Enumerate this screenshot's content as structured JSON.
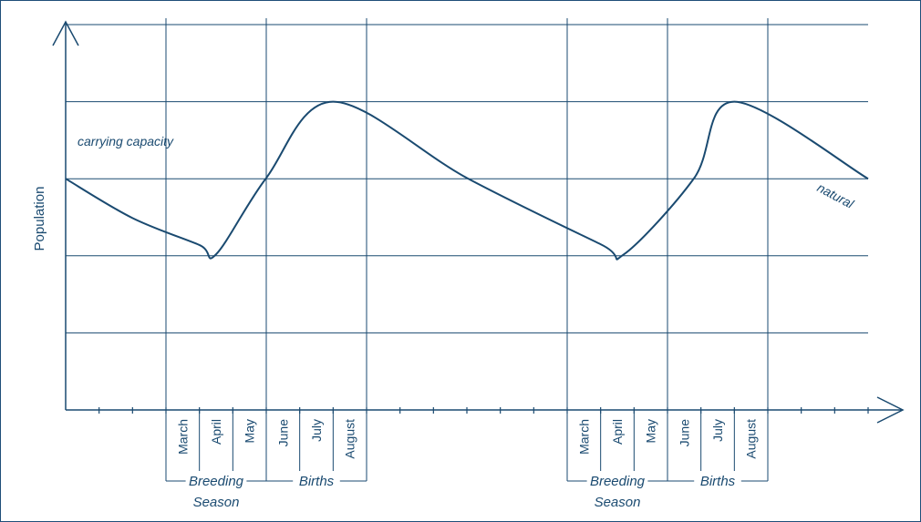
{
  "colors": {
    "line": "#1a4a70"
  },
  "chart_data": {
    "type": "line",
    "ylabel": "Population",
    "annotations": {
      "carrying_capacity": "carrying capacity",
      "natural": "natural"
    },
    "months": [
      {
        "label": "March",
        "slot": 4
      },
      {
        "label": "April",
        "slot": 5
      },
      {
        "label": "May",
        "slot": 6
      },
      {
        "label": "June",
        "slot": 7
      },
      {
        "label": "July",
        "slot": 8
      },
      {
        "label": "August",
        "slot": 9
      },
      {
        "label": "March",
        "slot": 16
      },
      {
        "label": "April",
        "slot": 17
      },
      {
        "label": "May",
        "slot": 18
      },
      {
        "label": "June",
        "slot": 19
      },
      {
        "label": "July",
        "slot": 20
      },
      {
        "label": "August",
        "slot": 21
      }
    ],
    "groups": [
      {
        "lines": [
          "Breeding",
          "Season"
        ],
        "first_slot": 4,
        "last_slot": 6
      },
      {
        "lines": [
          "Births"
        ],
        "first_slot": 7,
        "last_slot": 9
      },
      {
        "lines": [
          "Breeding",
          "Season"
        ],
        "first_slot": 16,
        "last_slot": 18
      },
      {
        "lines": [
          "Births"
        ],
        "first_slot": 19,
        "last_slot": 21
      }
    ],
    "ylim": [
      0,
      5
    ],
    "xlim": [
      0,
      24
    ],
    "grid": true,
    "ticks": 24,
    "series": [
      {
        "values": [
          [
            0,
            3
          ],
          [
            2,
            2.49
          ],
          [
            4,
            2.14
          ],
          [
            4.5,
            2.02
          ],
          [
            6,
            3.01
          ],
          [
            8,
            4
          ],
          [
            12,
            3.01
          ],
          [
            16,
            2.15
          ],
          [
            16.7,
            2.02
          ],
          [
            18.8,
            3.01
          ],
          [
            20,
            4
          ],
          [
            24,
            3
          ]
        ]
      }
    ]
  }
}
